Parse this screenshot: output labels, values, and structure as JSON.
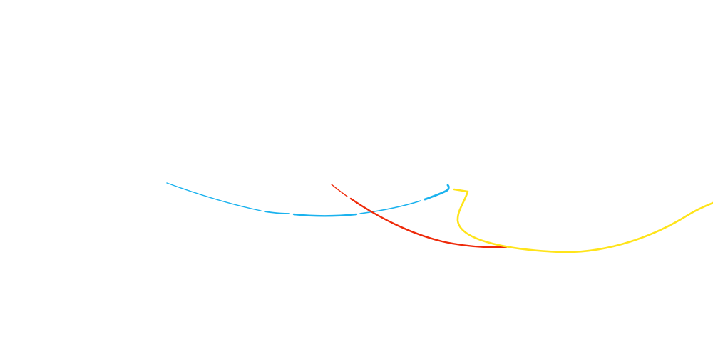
{
  "scene": {
    "background_color": "#ffffff",
    "strokes": [
      {
        "id": "blue-stroke",
        "color": "#1ab2ee"
      },
      {
        "id": "red-stroke",
        "color": "#ee2a0a"
      },
      {
        "id": "yellow-stroke",
        "color": "#ffe41a"
      }
    ]
  }
}
